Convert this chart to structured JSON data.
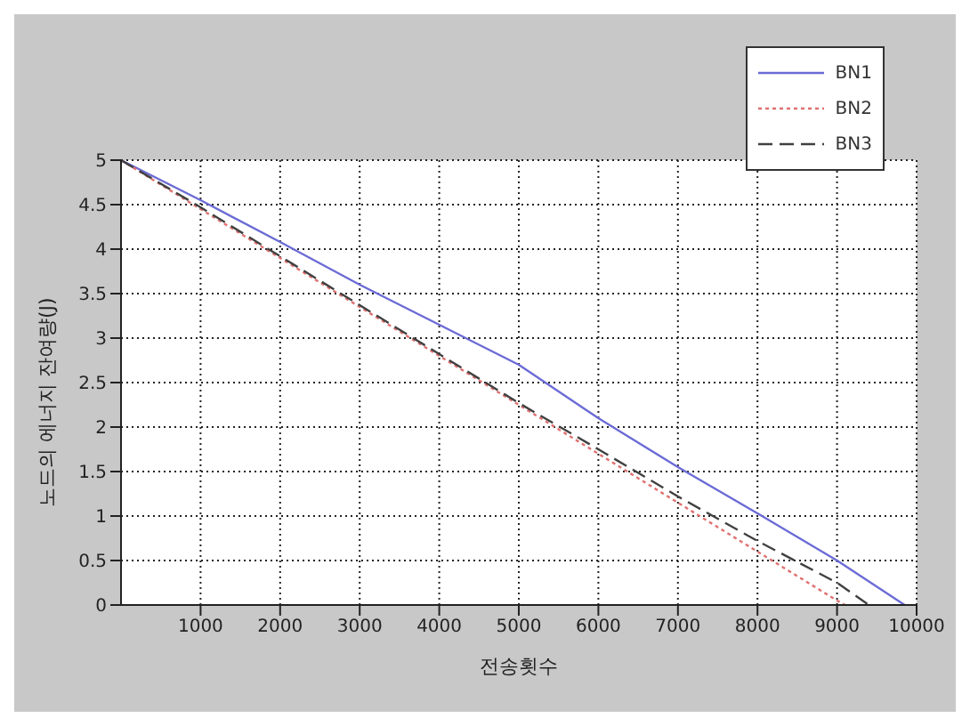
{
  "chart_data": {
    "type": "line",
    "xlabel": "전송횟수",
    "ylabel": "노드의 에너지 잔여량(J)",
    "xlim": [
      0,
      10000
    ],
    "xticks": [
      1000,
      2000,
      3000,
      4000,
      5000,
      6000,
      7000,
      8000,
      9000,
      10000
    ],
    "ylim": [
      0,
      5
    ],
    "yticks": [
      0,
      0.5,
      1,
      1.5,
      2,
      2.5,
      3,
      3.5,
      4,
      4.5,
      5
    ],
    "grid": true,
    "legend": "top right",
    "marker": "none",
    "series": [
      {
        "name": "BN1",
        "color": "#6b6bd6",
        "line_style": "solid",
        "x": [
          0,
          1000,
          2000,
          3000,
          4000,
          5000,
          6000,
          7000,
          8000,
          9000,
          9850
        ],
        "values": [
          5,
          4.55,
          4.08,
          3.6,
          3.15,
          2.7,
          2.1,
          1.55,
          1.03,
          0.5,
          0
        ]
      },
      {
        "name": "BN2",
        "color": "#e07070",
        "line_style": "dotted",
        "x": [
          0,
          1000,
          2000,
          3000,
          4000,
          5000,
          6000,
          7000,
          8000,
          9000,
          9100
        ],
        "values": [
          5,
          4.45,
          3.9,
          3.35,
          2.8,
          2.25,
          1.7,
          1.15,
          0.6,
          0.05,
          0
        ]
      },
      {
        "name": "BN3",
        "color": "#404040",
        "line_style": "dashed",
        "x": [
          0,
          1000,
          2000,
          3000,
          4000,
          5000,
          6000,
          7000,
          8000,
          9000,
          9400
        ],
        "values": [
          5,
          4.47,
          3.92,
          3.37,
          2.82,
          2.27,
          1.75,
          1.22,
          0.72,
          0.25,
          0
        ]
      }
    ]
  }
}
